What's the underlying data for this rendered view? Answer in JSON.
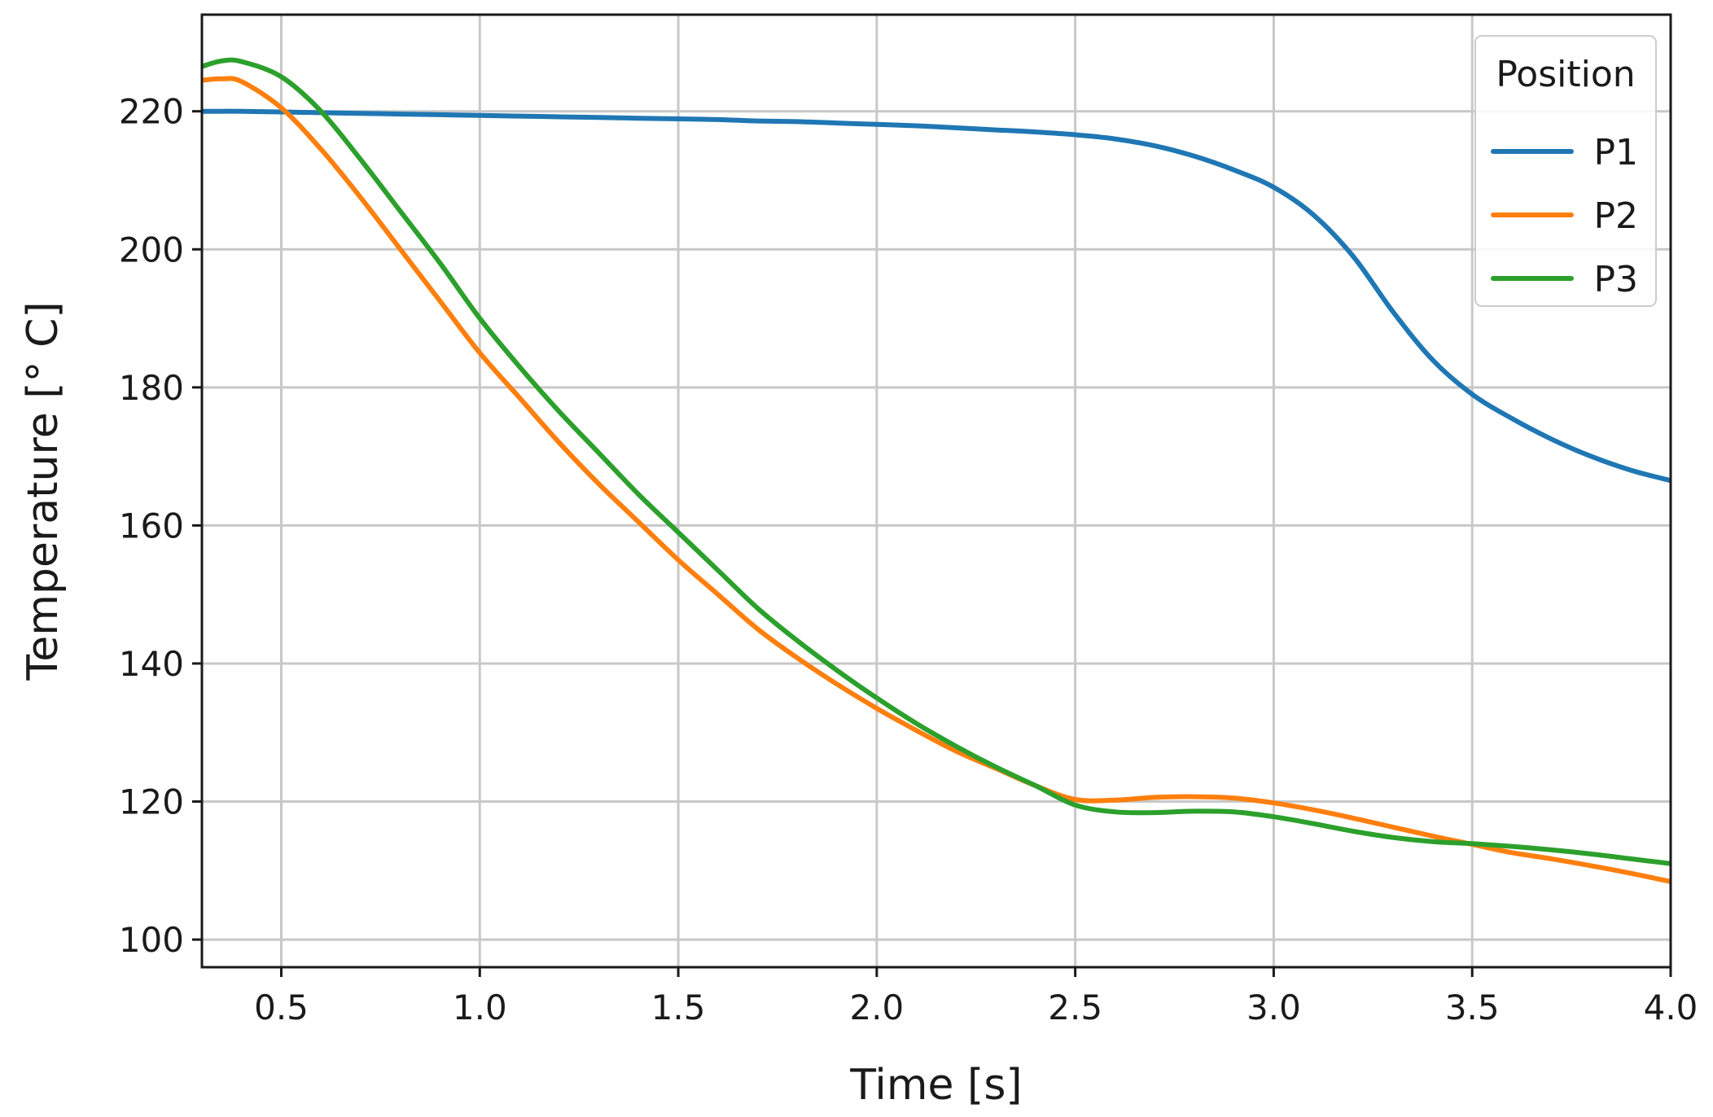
{
  "chart_data": {
    "type": "line",
    "title": "",
    "xlabel": "Time [s]",
    "ylabel": "Temperature [° C]",
    "xlim": [
      0.3,
      4.0
    ],
    "ylim": [
      96,
      234
    ],
    "x_ticks": [
      "0.5",
      "1.0",
      "1.5",
      "2.0",
      "2.5",
      "3.0",
      "3.5",
      "4.0"
    ],
    "y_ticks": [
      "100",
      "120",
      "140",
      "160",
      "180",
      "200",
      "220"
    ],
    "grid": true,
    "legend": {
      "title": "Position",
      "placement": "top-right"
    },
    "x": [
      0.3,
      0.35,
      0.4,
      0.5,
      0.6,
      0.7,
      0.8,
      0.9,
      1.0,
      1.1,
      1.2,
      1.3,
      1.4,
      1.5,
      1.6,
      1.7,
      1.8,
      1.9,
      2.0,
      2.1,
      2.2,
      2.3,
      2.4,
      2.5,
      2.6,
      2.7,
      2.8,
      2.9,
      3.0,
      3.1,
      3.2,
      3.3,
      3.4,
      3.5,
      3.6,
      3.7,
      3.8,
      3.9,
      4.0
    ],
    "series": [
      {
        "name": "P1",
        "color": "#1f77b4",
        "values": [
          220.0,
          220.0,
          220.0,
          219.9,
          219.8,
          219.7,
          219.6,
          219.5,
          219.4,
          219.3,
          219.2,
          219.1,
          219.0,
          218.9,
          218.8,
          218.6,
          218.5,
          218.3,
          218.1,
          217.9,
          217.6,
          217.3,
          217.0,
          216.6,
          216.0,
          215.0,
          213.5,
          211.5,
          209.0,
          205.0,
          199.0,
          191.0,
          184.0,
          179.0,
          175.5,
          172.5,
          170.0,
          168.0,
          166.5
        ]
      },
      {
        "name": "P2",
        "color": "#ff7f0e",
        "values": [
          224.5,
          224.7,
          224.3,
          220.5,
          214.5,
          207.5,
          200.0,
          192.5,
          185.0,
          178.5,
          172.0,
          166.0,
          160.5,
          155.0,
          150.0,
          145.0,
          140.8,
          137.0,
          133.5,
          130.3,
          127.3,
          124.8,
          122.3,
          120.3,
          120.2,
          120.6,
          120.7,
          120.5,
          119.8,
          118.8,
          117.6,
          116.3,
          115.0,
          113.8,
          112.6,
          111.7,
          110.7,
          109.6,
          108.4
        ]
      },
      {
        "name": "P3",
        "color": "#2ca02c",
        "values": [
          226.5,
          227.3,
          227.2,
          225.0,
          220.0,
          213.0,
          205.5,
          198.0,
          190.0,
          183.0,
          176.5,
          170.5,
          164.5,
          159.0,
          153.5,
          148.0,
          143.3,
          139.0,
          135.0,
          131.3,
          128.0,
          125.0,
          122.3,
          119.5,
          118.5,
          118.4,
          118.6,
          118.5,
          117.8,
          116.8,
          115.7,
          114.8,
          114.2,
          113.9,
          113.5,
          113.0,
          112.4,
          111.7,
          111.0
        ]
      }
    ]
  }
}
